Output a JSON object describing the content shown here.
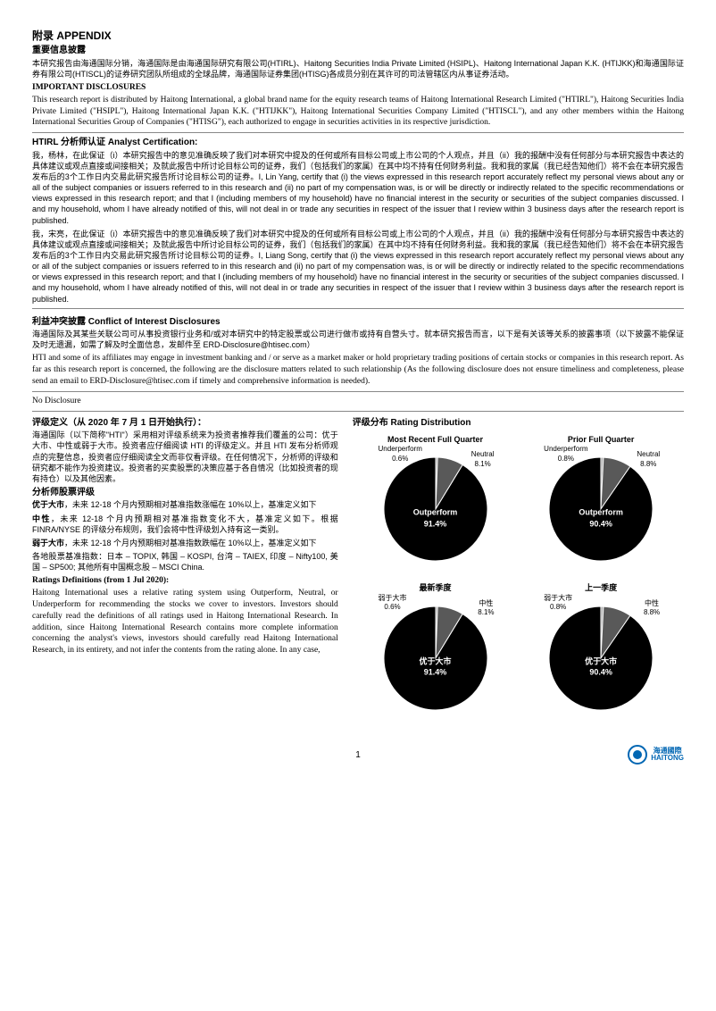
{
  "appendix": {
    "title": "附录 APPENDIX",
    "disclosure_title": "重要信息披露",
    "cn_para": "本研究报告由海通国际分销，海通国际是由海通国际研究有限公司(HTIRL)、Haitong Securities India Private Limited (HSIPL)、Haitong International Japan K.K. (HTIJKK)和海通国际证券有限公司(HTISCL)的证券研究团队所组成的全球品牌，海通国际证券集团(HTISG)各成员分别在其许可的司法管辖区内从事证券活动。",
    "imp_title": "IMPORTANT DISCLOSURES",
    "en_para": "This research report is distributed by Haitong International, a global brand name for the equity research teams of Haitong International Research Limited (\"HTIRL\"), Haitong Securities India Private Limited (\"HSIPL\"), Haitong International Japan K.K. (\"HTIJKK\"), Haitong International Securities Company Limited (\"HTISCL\"), and any other members within the Haitong International Securities Group of Companies (\"HTISG\"), each authorized to engage in securities activities in its respective jurisdiction."
  },
  "cert": {
    "title": "HTIRL 分析师认证 Analyst Certification:",
    "p1": "我，杨林，在此保证（i）本研究报告中的意见准确反映了我们对本研究中提及的任何或所有目标公司或上市公司的个人观点，并且（ii）我的报酬中没有任何部分与本研究报告中表达的具体建议或观点直接或间接相关；及就此报告中所讨论目标公司的证券，我们（包括我们的家属）在其中均不持有任何财务利益。我和我的家属（我已经告知他们）将不会在本研究报告发布后的3个工作日内交易此研究报告所讨论目标公司的证券。I, Lin Yang, certify that (i) the views expressed in this research report accurately reflect my personal views about any or all of the subject companies or issuers referred to in this research and (ii) no part of my compensation was, is or will be directly or indirectly related to the specific recommendations or views expressed in this research report; and that I (including members of my household) have no financial interest in the security or securities of the subject companies discussed. I and my household, whom I have already notified of this, will not deal in or trade any securities in respect of the issuer that I review within 3 business days after the research report is published.",
    "p2": "我，宋亮，在此保证（i）本研究报告中的意见准确反映了我们对本研究中提及的任何或所有目标公司或上市公司的个人观点，并且（ii）我的报酬中没有任何部分与本研究报告中表达的具体建议或观点直接或间接相关；及就此报告中所讨论目标公司的证券，我们（包括我们的家属）在其中均不持有任何财务利益。我和我的家属（我已经告知他们）将不会在本研究报告发布后的3个工作日内交易此研究报告所讨论目标公司的证券。I, Liang Song, certify that (i) the views expressed in this research report accurately reflect my personal views about any or all of the subject companies or issuers referred to in this research and (ii) no part of my compensation was, is or will be directly or indirectly related to the specific recommendations or views expressed in this research report; and that I (including members of my household) have no financial interest in the security or securities of the subject companies discussed. I and my household, whom I have already notified of this, will not deal in or trade any securities in respect of the issuer that I review within 3 business days after the research report is published."
  },
  "coi": {
    "title": "利益冲突披露 Conflict of Interest Disclosures",
    "cn": "海通国际及其某些关联公司可从事投资银行业务和/或对本研究中的特定股票或公司进行做市或持有自营头寸。就本研究报告而言，以下是有关该等关系的披露事项（以下披露不能保证及时无遗漏，如需了解及时全面信息，发邮件至 ERD-Disclosure@htisec.com）",
    "en": "HTI and some of its affiliates may engage in investment banking and / or serve as a market maker or hold proprietary trading positions of certain stocks or companies in this research report. As far as this research report is concerned, the following are the disclosure matters related to such relationship (As the following disclosure does not ensure timeliness and completeness, please send an email to ERD-Disclosure@htisec.com if timely and comprehensive information is needed).",
    "none": "No Disclosure"
  },
  "ratings": {
    "cn_title": "评级定义（从 2020 年 7 月 1 日开始执行）：",
    "cn_intro": "海通国际（以下简称\"HTI\"）采用相对评级系统来为投资者推荐我们覆盖的公司：优于大市、中性或弱于大市。投资者应仔细阅读 HTI 的评级定义。并且 HTI 发布分析师观点的完整信息，投资者应仔细阅读全文而非仅看评级。在任何情况下，分析师的评级和研究都不能作为投资建议。投资者的买卖股票的决策应基于各自情况（比如投资者的现有持仓）以及其他因素。",
    "stock_title": "分析师股票评级",
    "out": "优于大市",
    "out_def": "，未来 12-18 个月内预期相对基准指数涨幅在 10%以上，基准定义如下",
    "neu": "中性",
    "neu_def": "，未来 12-18 个月内预期相对基准指数变化不大，基准定义如下。根据FINRA/NYSE 的评级分布规则，我们会将中性评级划入持有这一类别。",
    "under": "弱于大市",
    "under_def": "，未来 12-18 个月内预期相对基准指数跌幅在 10%以上，基准定义如下",
    "bench": "各地股票基准指数：日本 – TOPIX, 韩国 – KOSPI, 台湾 – TAIEX, 印度 – Nifty100, 美国 – SP500; 其他所有中国概念股 – MSCI China.",
    "en_title": "Ratings Definitions (from 1 Jul 2020):",
    "en_para": "Haitong International uses a relative rating system using Outperform, Neutral, or Underperform for recommending the stocks we cover to investors. Investors should carefully read the definitions of all ratings used in Haitong International Research. In addition, since Haitong International Research contains more complete information concerning the analyst's views, investors should carefully read Haitong International Research, in its entirety, and not infer the contents from the rating alone. In any case,"
  },
  "dist": {
    "title": "评级分布 Rating Distribution",
    "charts": [
      {
        "title": "Most Recent Full Quarter",
        "labels": {
          "under": "Underperform",
          "under_v": "0.6%",
          "neu": "Neutral",
          "neu_v": "8.1%",
          "out": "Outperform",
          "out_v": "91.4%"
        },
        "slices": {
          "out": 91.4,
          "neu": 8.1,
          "under": 0.6
        },
        "colors": {
          "out": "#000000",
          "neu": "#595959",
          "under": "#a6a6a6"
        }
      },
      {
        "title": "Prior Full Quarter",
        "labels": {
          "under": "Underperform",
          "under_v": "0.8%",
          "neu": "Neutral",
          "neu_v": "8.8%",
          "out": "Outperform",
          "out_v": "90.4%"
        },
        "slices": {
          "out": 90.4,
          "neu": 8.8,
          "under": 0.8
        },
        "colors": {
          "out": "#000000",
          "neu": "#595959",
          "under": "#a6a6a6"
        }
      },
      {
        "title": "最新季度",
        "labels": {
          "under": "弱于大市",
          "under_v": "0.6%",
          "neu": "中性",
          "neu_v": "8.1%",
          "out": "优于大市",
          "out_v": "91.4%"
        },
        "slices": {
          "out": 91.4,
          "neu": 8.1,
          "under": 0.6
        },
        "colors": {
          "out": "#000000",
          "neu": "#595959",
          "under": "#a6a6a6"
        }
      },
      {
        "title": "上一季度",
        "labels": {
          "under": "弱于大市",
          "under_v": "0.8%",
          "neu": "中性",
          "neu_v": "8.8%",
          "out": "优于大市",
          "out_v": "90.4%"
        },
        "slices": {
          "out": 90.4,
          "neu": 8.8,
          "under": 0.8
        },
        "colors": {
          "out": "#000000",
          "neu": "#595959",
          "under": "#a6a6a6"
        }
      }
    ],
    "bg": "#ffffff"
  },
  "footer": {
    "page": "1",
    "brand_cn": "海通國際",
    "brand_en": "HAITONG"
  }
}
